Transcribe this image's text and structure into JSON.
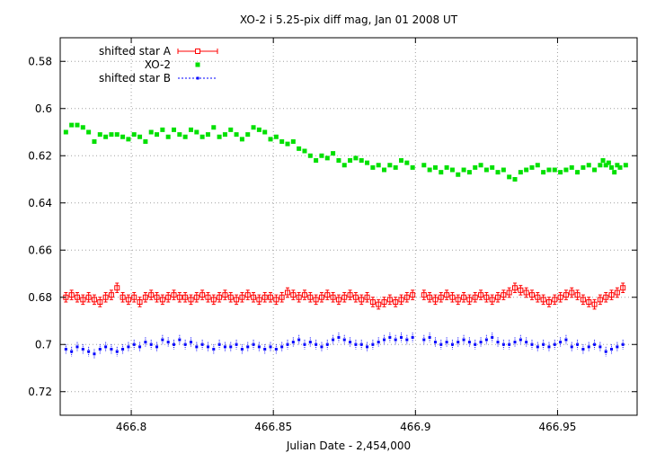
{
  "chart_data": {
    "type": "scatter",
    "title": "XO-2 i 5.25-pix diff mag, Jan 01 2008 UT",
    "xlabel": "Julian Date - 2,454,000",
    "ylabel": "",
    "xlim": [
      466.775,
      466.978
    ],
    "ylim": [
      0.57,
      0.73
    ],
    "y_inverted": true,
    "grid": true,
    "legend_position": "top-left",
    "x_ticks": [
      466.8,
      466.85,
      466.9,
      466.95
    ],
    "x_tick_labels": [
      "466.8",
      "466.85",
      "466.9",
      "466.95"
    ],
    "y_ticks": [
      0.58,
      0.6,
      0.62,
      0.64,
      0.66,
      0.68,
      0.7,
      0.72
    ],
    "y_tick_labels": [
      "0.58",
      "0.6",
      "0.62",
      "0.64",
      "0.66",
      "0.68",
      "0.7",
      "0.72"
    ],
    "series": [
      {
        "name": "shifted star A",
        "color": "#ff0000",
        "marker": "open-square-errorbar",
        "x": [
          466.777,
          466.779,
          466.781,
          466.783,
          466.785,
          466.787,
          466.789,
          466.791,
          466.793,
          466.795,
          466.797,
          466.799,
          466.801,
          466.803,
          466.805,
          466.807,
          466.809,
          466.811,
          466.813,
          466.815,
          466.817,
          466.819,
          466.821,
          466.823,
          466.825,
          466.827,
          466.829,
          466.831,
          466.833,
          466.835,
          466.837,
          466.839,
          466.841,
          466.843,
          466.845,
          466.847,
          466.849,
          466.851,
          466.853,
          466.855,
          466.857,
          466.859,
          466.861,
          466.863,
          466.865,
          466.867,
          466.869,
          466.871,
          466.873,
          466.875,
          466.877,
          466.879,
          466.881,
          466.883,
          466.885,
          466.887,
          466.889,
          466.891,
          466.893,
          466.895,
          466.897,
          466.899,
          466.903,
          466.905,
          466.907,
          466.909,
          466.911,
          466.913,
          466.915,
          466.917,
          466.919,
          466.921,
          466.923,
          466.925,
          466.927,
          466.929,
          466.931,
          466.933,
          466.935,
          466.937,
          466.939,
          466.941,
          466.943,
          466.945,
          466.947,
          466.949,
          466.951,
          466.953,
          466.955,
          466.957,
          466.959,
          466.961,
          466.963,
          466.965,
          466.967,
          466.969,
          466.971,
          466.973
        ],
        "y": [
          0.68,
          0.679,
          0.68,
          0.681,
          0.68,
          0.681,
          0.682,
          0.68,
          0.679,
          0.676,
          0.68,
          0.681,
          0.68,
          0.682,
          0.68,
          0.679,
          0.68,
          0.681,
          0.68,
          0.679,
          0.68,
          0.68,
          0.681,
          0.68,
          0.679,
          0.68,
          0.681,
          0.68,
          0.679,
          0.68,
          0.681,
          0.68,
          0.679,
          0.68,
          0.681,
          0.68,
          0.68,
          0.681,
          0.68,
          0.678,
          0.679,
          0.68,
          0.679,
          0.68,
          0.681,
          0.68,
          0.679,
          0.68,
          0.681,
          0.68,
          0.679,
          0.68,
          0.681,
          0.68,
          0.682,
          0.683,
          0.682,
          0.681,
          0.682,
          0.681,
          0.68,
          0.679,
          0.679,
          0.68,
          0.681,
          0.68,
          0.679,
          0.68,
          0.681,
          0.68,
          0.681,
          0.68,
          0.679,
          0.68,
          0.681,
          0.68,
          0.679,
          0.678,
          0.676,
          0.677,
          0.678,
          0.679,
          0.68,
          0.681,
          0.682,
          0.681,
          0.68,
          0.679,
          0.678,
          0.679,
          0.681,
          0.682,
          0.683,
          0.681,
          0.68,
          0.679,
          0.678,
          0.676
        ]
      },
      {
        "name": "XO-2",
        "color": "#00e000",
        "marker": "filled-square",
        "x": [
          466.777,
          466.779,
          466.781,
          466.783,
          466.785,
          466.787,
          466.789,
          466.791,
          466.793,
          466.795,
          466.797,
          466.799,
          466.801,
          466.803,
          466.805,
          466.807,
          466.809,
          466.811,
          466.813,
          466.815,
          466.817,
          466.819,
          466.821,
          466.823,
          466.825,
          466.827,
          466.829,
          466.831,
          466.833,
          466.835,
          466.837,
          466.839,
          466.841,
          466.843,
          466.845,
          466.847,
          466.849,
          466.851,
          466.853,
          466.855,
          466.857,
          466.859,
          466.861,
          466.863,
          466.865,
          466.867,
          466.869,
          466.871,
          466.873,
          466.875,
          466.877,
          466.879,
          466.881,
          466.883,
          466.885,
          466.887,
          466.889,
          466.891,
          466.893,
          466.895,
          466.897,
          466.899,
          466.903,
          466.905,
          466.907,
          466.909,
          466.911,
          466.913,
          466.915,
          466.917,
          466.919,
          466.921,
          466.923,
          466.925,
          466.927,
          466.929,
          466.931,
          466.933,
          466.935,
          466.937,
          466.939,
          466.941,
          466.943,
          466.945,
          466.947,
          466.949,
          466.951,
          466.953,
          466.955,
          466.957,
          466.959,
          466.961,
          466.963,
          466.965,
          466.966,
          466.967,
          466.968,
          466.969,
          466.97,
          466.971,
          466.972,
          466.974
        ],
        "y": [
          0.61,
          0.607,
          0.607,
          0.608,
          0.61,
          0.614,
          0.611,
          0.612,
          0.611,
          0.611,
          0.612,
          0.613,
          0.611,
          0.612,
          0.614,
          0.61,
          0.611,
          0.609,
          0.612,
          0.609,
          0.611,
          0.612,
          0.609,
          0.61,
          0.612,
          0.611,
          0.608,
          0.612,
          0.611,
          0.609,
          0.611,
          0.613,
          0.611,
          0.608,
          0.609,
          0.61,
          0.613,
          0.612,
          0.614,
          0.615,
          0.614,
          0.617,
          0.618,
          0.62,
          0.622,
          0.62,
          0.621,
          0.619,
          0.622,
          0.624,
          0.622,
          0.621,
          0.622,
          0.623,
          0.625,
          0.624,
          0.626,
          0.624,
          0.625,
          0.622,
          0.623,
          0.625,
          0.624,
          0.626,
          0.625,
          0.627,
          0.625,
          0.626,
          0.628,
          0.626,
          0.627,
          0.625,
          0.624,
          0.626,
          0.625,
          0.627,
          0.626,
          0.629,
          0.63,
          0.627,
          0.626,
          0.625,
          0.624,
          0.627,
          0.626,
          0.626,
          0.627,
          0.626,
          0.625,
          0.627,
          0.625,
          0.624,
          0.626,
          0.624,
          0.622,
          0.624,
          0.623,
          0.625,
          0.627,
          0.624,
          0.625,
          0.624
        ],
        "_comment_style": "colors as hex strings"
      },
      {
        "name": "shifted star B",
        "color": "#0000ff",
        "marker": "filled-square-errorbar-dotted",
        "x": [
          466.777,
          466.779,
          466.781,
          466.783,
          466.785,
          466.787,
          466.789,
          466.791,
          466.793,
          466.795,
          466.797,
          466.799,
          466.801,
          466.803,
          466.805,
          466.807,
          466.809,
          466.811,
          466.813,
          466.815,
          466.817,
          466.819,
          466.821,
          466.823,
          466.825,
          466.827,
          466.829,
          466.831,
          466.833,
          466.835,
          466.837,
          466.839,
          466.841,
          466.843,
          466.845,
          466.847,
          466.849,
          466.851,
          466.853,
          466.855,
          466.857,
          466.859,
          466.861,
          466.863,
          466.865,
          466.867,
          466.869,
          466.871,
          466.873,
          466.875,
          466.877,
          466.879,
          466.881,
          466.883,
          466.885,
          466.887,
          466.889,
          466.891,
          466.893,
          466.895,
          466.897,
          466.899,
          466.903,
          466.905,
          466.907,
          466.909,
          466.911,
          466.913,
          466.915,
          466.917,
          466.919,
          466.921,
          466.923,
          466.925,
          466.927,
          466.929,
          466.931,
          466.933,
          466.935,
          466.937,
          466.939,
          466.941,
          466.943,
          466.945,
          466.947,
          466.949,
          466.951,
          466.953,
          466.955,
          466.957,
          466.959,
          466.961,
          466.963,
          466.965,
          466.967,
          466.969,
          466.971,
          466.973
        ],
        "y": [
          0.702,
          0.703,
          0.701,
          0.702,
          0.703,
          0.704,
          0.702,
          0.701,
          0.702,
          0.703,
          0.702,
          0.701,
          0.7,
          0.701,
          0.699,
          0.7,
          0.701,
          0.698,
          0.699,
          0.7,
          0.698,
          0.7,
          0.699,
          0.701,
          0.7,
          0.701,
          0.702,
          0.7,
          0.701,
          0.701,
          0.7,
          0.702,
          0.701,
          0.7,
          0.701,
          0.702,
          0.701,
          0.702,
          0.701,
          0.7,
          0.699,
          0.698,
          0.7,
          0.699,
          0.7,
          0.701,
          0.7,
          0.698,
          0.697,
          0.698,
          0.699,
          0.7,
          0.7,
          0.701,
          0.7,
          0.699,
          0.698,
          0.697,
          0.698,
          0.697,
          0.698,
          0.697,
          0.698,
          0.697,
          0.699,
          0.7,
          0.699,
          0.7,
          0.699,
          0.698,
          0.699,
          0.7,
          0.699,
          0.698,
          0.697,
          0.699,
          0.7,
          0.7,
          0.699,
          0.698,
          0.699,
          0.7,
          0.701,
          0.7,
          0.701,
          0.7,
          0.699,
          0.698,
          0.701,
          0.7,
          0.702,
          0.701,
          0.7,
          0.701,
          0.703,
          0.702,
          0.701,
          0.7
        ]
      }
    ]
  }
}
